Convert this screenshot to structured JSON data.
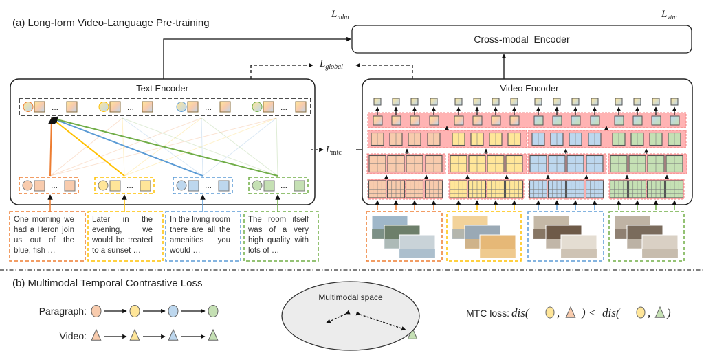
{
  "part_a": {
    "title": "(a) Long-form Video-Language Pre-training"
  },
  "losses": {
    "mlm": {
      "main": "L",
      "sub": "mlm"
    },
    "vtm": {
      "main": "L",
      "sub": "vtm"
    },
    "global": {
      "main": "L",
      "sub": "global"
    },
    "mtc": {
      "main": "L",
      "sub": "mtc"
    }
  },
  "encoders": {
    "cross_modal": "Cross-modal  Encoder",
    "text": "Text Encoder",
    "video": "Video Encoder"
  },
  "token_ellipsis": "...",
  "paragraphs": [
    {
      "text": "One morning we had a Heron join us out of the blue, fish …",
      "color": "orange"
    },
    {
      "text": "Later in the evening, we would be treated to a sunset …",
      "color": "yellow"
    },
    {
      "text": "In the living room there are all the amenities you would …",
      "color": "blue"
    },
    {
      "text": "The room itself was of a very high quality with lots of …",
      "color": "green"
    }
  ],
  "part_b": {
    "title": "(b) Multimodal Temporal Contrastive Loss",
    "paragraph_label": "Paragraph:",
    "video_label": "Video:",
    "space_label": "Multimodal space",
    "mtc_label": "MTC loss:",
    "formula": {
      "dis1": "dis(",
      "comma": ",",
      "lt": ") <",
      "dis2": "dis(",
      "close": ")"
    }
  },
  "colors": {
    "orange": {
      "stroke": "#ed7d31",
      "fill": "#f8cbad"
    },
    "yellow": {
      "stroke": "#ffc000",
      "fill": "#ffe699"
    },
    "blue": {
      "stroke": "#5b9bd5",
      "fill": "#bdd7ee"
    },
    "green": {
      "stroke": "#70ad47",
      "fill": "#c5e0b4"
    },
    "band": "#ffb3b3",
    "space": "#ececec"
  }
}
